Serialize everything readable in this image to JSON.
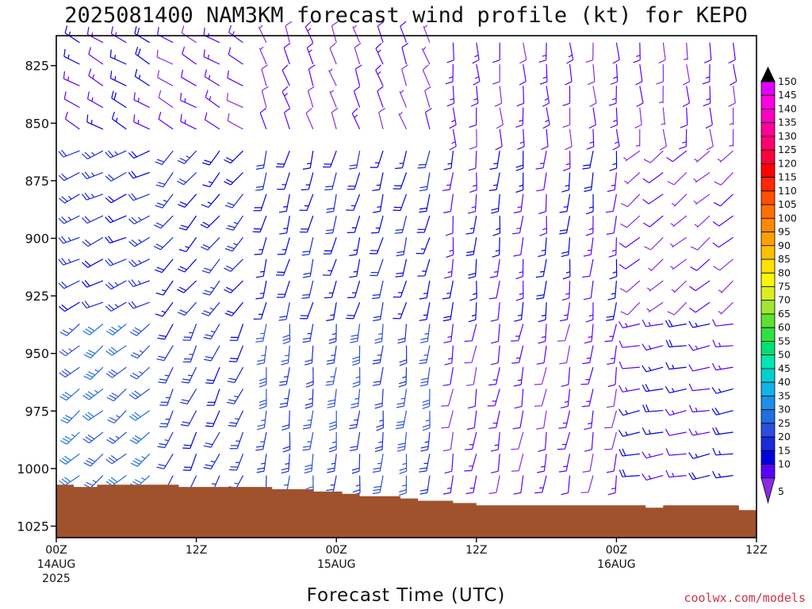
{
  "credit": "coolwx.com/models",
  "colors": {
    "credit": "#d0304a",
    "terrain": "#a0522d",
    "frame": "#000000"
  },
  "chart_data": {
    "type": "wind_barb_time_height",
    "title": "2025081400 NAM3KM forecast wind profile (kt) for KEPO",
    "xlabel": "Forecast Time (UTC)",
    "ylabel": "",
    "x_range_hours": [
      0,
      60
    ],
    "ylim_hpa": [
      1030,
      812
    ],
    "y_ticks": [
      825,
      850,
      875,
      900,
      925,
      950,
      975,
      1000,
      1025
    ],
    "x_ticks": [
      {
        "hour": 0,
        "lines": [
          "00Z",
          "14AUG",
          "2025"
        ]
      },
      {
        "hour": 12,
        "lines": [
          "12Z"
        ]
      },
      {
        "hour": 24,
        "lines": [
          "00Z",
          "15AUG"
        ]
      },
      {
        "hour": 36,
        "lines": [
          "12Z"
        ]
      },
      {
        "hour": 48,
        "lines": [
          "00Z",
          "16AUG"
        ]
      },
      {
        "hour": 60,
        "lines": [
          "12Z"
        ]
      }
    ],
    "colorbar": {
      "unit": "kt",
      "levels": [
        5,
        10,
        15,
        20,
        25,
        30,
        35,
        40,
        45,
        50,
        55,
        60,
        65,
        70,
        75,
        80,
        85,
        90,
        95,
        100,
        105,
        110,
        115,
        120,
        125,
        130,
        135,
        140,
        145,
        150
      ],
      "colors": [
        "#8a2be2",
        "#5a00ff",
        "#0000e0",
        "#1a2bd8",
        "#2a4fe0",
        "#1f6fe0",
        "#1c90e8",
        "#10b4e8",
        "#00d0d0",
        "#00e8b0",
        "#00e070",
        "#30e040",
        "#60e030",
        "#a0e830",
        "#d8f020",
        "#f8f800",
        "#ffe000",
        "#ffc000",
        "#ffa000",
        "#ff8800",
        "#ff7000",
        "#ff5000",
        "#ff2800",
        "#ff0000",
        "#ff0040",
        "#ff0070",
        "#ff0098",
        "#ff00c0",
        "#ff00e0",
        "#e000ff"
      ]
    },
    "surface_pressure_hpa": [
      {
        "hour": 0,
        "p": 1007
      },
      {
        "hour": 1.5,
        "p": 1008
      },
      {
        "hour": 3.5,
        "p": 1007
      },
      {
        "hour": 10.5,
        "p": 1008
      },
      {
        "hour": 18.5,
        "p": 1009
      },
      {
        "hour": 22,
        "p": 1010
      },
      {
        "hour": 24.5,
        "p": 1011
      },
      {
        "hour": 26,
        "p": 1012
      },
      {
        "hour": 29.5,
        "p": 1013
      },
      {
        "hour": 31,
        "p": 1014
      },
      {
        "hour": 34,
        "p": 1015
      },
      {
        "hour": 36,
        "p": 1016
      },
      {
        "hour": 47,
        "p": 1016
      },
      {
        "hour": 50.5,
        "p": 1017
      },
      {
        "hour": 52,
        "p": 1016
      },
      {
        "hour": 58.5,
        "p": 1018
      },
      {
        "hour": 60,
        "p": 1018
      }
    ],
    "barb_grid": {
      "hour_step": 2,
      "p_top": 815,
      "p_step": 9.4
    },
    "wind_regimes": [
      {
        "hours": [
          0,
          10
        ],
        "layer": "upper",
        "dir": 300,
        "spd": 15
      },
      {
        "hours": [
          0,
          10
        ],
        "layer": "middle",
        "dir": 245,
        "spd": 22
      },
      {
        "hours": [
          0,
          10
        ],
        "layer": "lower",
        "dir": 230,
        "spd": 30
      },
      {
        "hours": [
          10,
          18
        ],
        "layer": "upper",
        "dir": 300,
        "spd": 12
      },
      {
        "hours": [
          10,
          18
        ],
        "layer": "middle",
        "dir": 220,
        "spd": 20
      },
      {
        "hours": [
          10,
          18
        ],
        "layer": "lower",
        "dir": 205,
        "spd": 22
      },
      {
        "hours": [
          18,
          34
        ],
        "layer": "upper",
        "dir": 340,
        "spd": 10
      },
      {
        "hours": [
          18,
          34
        ],
        "layer": "middle",
        "dir": 195,
        "spd": 18
      },
      {
        "hours": [
          18,
          34
        ],
        "layer": "lower",
        "dir": 185,
        "spd": 25
      },
      {
        "hours": [
          34,
          50
        ],
        "layer": "upper",
        "dir": 175,
        "spd": 12
      },
      {
        "hours": [
          34,
          50
        ],
        "layer": "middle",
        "dir": 185,
        "spd": 15
      },
      {
        "hours": [
          34,
          50
        ],
        "layer": "lower",
        "dir": 190,
        "spd": 12
      },
      {
        "hours": [
          50,
          60
        ],
        "layer": "upper",
        "dir": 175,
        "spd": 10
      },
      {
        "hours": [
          50,
          60
        ],
        "layer": "middle",
        "dir": 230,
        "spd": 8
      },
      {
        "hours": [
          50,
          60
        ],
        "layer": "lower",
        "dir": 260,
        "spd": 15
      }
    ]
  }
}
